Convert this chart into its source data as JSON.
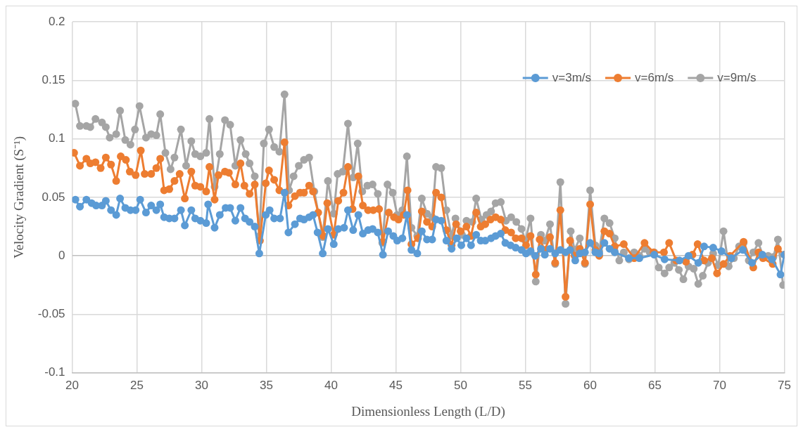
{
  "chart_data": {
    "type": "line",
    "xlabel": "Dimensionless Length (L/D)",
    "ylabel": "Velocity Gradient (S⁻¹)",
    "xlim": [
      20,
      75
    ],
    "xticks": [
      20,
      25,
      30,
      35,
      40,
      45,
      50,
      55,
      60,
      65,
      70,
      75
    ],
    "ylim": [
      -0.1,
      0.2
    ],
    "yticks": [
      -0.1,
      -0.05,
      0,
      0.05,
      0.1,
      0.15,
      0.2
    ],
    "grid": true,
    "legend": "top right",
    "marker": "circle",
    "line_style": "solid",
    "series": [
      {
        "name": "v=3m/s",
        "color": "#5b9bd5",
        "x": [
          20.25,
          20.6,
          21.1,
          21.5,
          21.85,
          22.3,
          22.6,
          23.0,
          23.4,
          23.7,
          24.1,
          24.5,
          24.9,
          25.25,
          25.7,
          26.1,
          26.5,
          26.8,
          27.1,
          27.5,
          27.9,
          28.4,
          28.7,
          29.2,
          29.5,
          29.9,
          30.35,
          30.5,
          31.0,
          31.4,
          31.85,
          32.2,
          32.6,
          33.0,
          33.35,
          33.7,
          34.1,
          34.45,
          34.95,
          35.25,
          35.6,
          36.05,
          36.4,
          36.7,
          37.2,
          37.6,
          37.9,
          38.3,
          38.6,
          38.95,
          39.35,
          39.75,
          40.2,
          40.55,
          41.0,
          41.3,
          41.7,
          42.1,
          42.45,
          42.85,
          43.2,
          43.6,
          44.0,
          44.4,
          44.8,
          45.1,
          45.5,
          45.85,
          46.2,
          46.65,
          47.0,
          47.4,
          47.8,
          48.1,
          48.5,
          48.9,
          49.3,
          49.7,
          50.05,
          50.45,
          50.8,
          51.2,
          51.55,
          51.9,
          52.35,
          52.7,
          53.1,
          53.45,
          53.85,
          54.25,
          54.7,
          55.05,
          55.4,
          55.75,
          56.2,
          56.5,
          56.9,
          57.3,
          57.7,
          58.1,
          58.45,
          58.85,
          59.2,
          59.6,
          60.0,
          60.4,
          60.7,
          61.1,
          61.5,
          61.9,
          63.0,
          63.8,
          64.95,
          65.75,
          66.9,
          67.6,
          68.35,
          68.8,
          69.5,
          70.15,
          70.9,
          71.8,
          72.5,
          73.3,
          74.05,
          74.7,
          75.0
        ],
        "values": [
          0.048,
          0.042,
          0.048,
          0.045,
          0.043,
          0.043,
          0.047,
          0.039,
          0.035,
          0.049,
          0.041,
          0.039,
          0.039,
          0.048,
          0.037,
          0.043,
          0.039,
          0.044,
          0.033,
          0.032,
          0.032,
          0.039,
          0.026,
          0.039,
          0.032,
          0.03,
          0.028,
          0.044,
          0.024,
          0.035,
          0.041,
          0.041,
          0.03,
          0.041,
          0.032,
          0.029,
          0.025,
          0.002,
          0.035,
          0.039,
          0.032,
          0.032,
          0.054,
          0.02,
          0.027,
          0.032,
          0.031,
          0.033,
          0.035,
          0.02,
          0.002,
          0.023,
          0.01,
          0.023,
          0.024,
          0.039,
          0.022,
          0.035,
          0.019,
          0.022,
          0.023,
          0.02,
          0.001,
          0.021,
          0.017,
          0.013,
          0.015,
          0.035,
          0.005,
          0.002,
          0.021,
          0.014,
          0.014,
          0.031,
          0.03,
          0.013,
          0.006,
          0.015,
          0.009,
          0.015,
          0.009,
          0.018,
          0.013,
          0.013,
          0.015,
          0.017,
          0.019,
          0.011,
          0.009,
          0.007,
          0.005,
          0.002,
          0.004,
          0.0,
          0.006,
          0.001,
          0.006,
          0.002,
          0.005,
          0.003,
          0.005,
          -0.004,
          0.002,
          0.003,
          0.011,
          0.003,
          0.002,
          0.011,
          0.006,
          0.003,
          -0.002,
          -0.002,
          0.001,
          -0.003,
          -0.004,
          0.0,
          -0.006,
          0.008,
          0.007,
          0.004,
          -0.002,
          0.005,
          -0.006,
          0.001,
          -0.003,
          -0.016,
          0.001
        ]
      },
      {
        "name": "v=6m/s",
        "color": "#ed7d31",
        "x": [
          20.15,
          20.6,
          21.1,
          21.4,
          21.8,
          22.2,
          22.6,
          23.0,
          23.4,
          23.75,
          24.15,
          24.45,
          24.9,
          25.3,
          25.6,
          26.1,
          26.5,
          26.8,
          27.1,
          27.5,
          27.9,
          28.3,
          28.7,
          29.2,
          29.5,
          29.9,
          30.35,
          30.6,
          31.0,
          31.3,
          31.8,
          32.1,
          32.6,
          33.0,
          33.3,
          33.7,
          34.1,
          34.5,
          34.95,
          35.2,
          35.6,
          36.0,
          36.4,
          36.7,
          37.2,
          37.6,
          37.9,
          38.3,
          38.6,
          39.0,
          39.4,
          39.7,
          40.2,
          40.55,
          40.95,
          41.3,
          41.65,
          42.1,
          42.45,
          42.85,
          43.25,
          43.7,
          44.0,
          44.45,
          44.85,
          45.2,
          45.6,
          45.9,
          46.2,
          46.7,
          47.0,
          47.4,
          47.8,
          48.1,
          48.5,
          48.9,
          49.3,
          49.65,
          50.0,
          50.45,
          50.8,
          51.2,
          51.55,
          51.9,
          52.3,
          52.7,
          53.1,
          53.45,
          53.9,
          54.25,
          54.7,
          55.05,
          55.4,
          55.8,
          56.1,
          56.5,
          56.9,
          57.3,
          57.7,
          58.1,
          58.45,
          58.8,
          59.2,
          59.6,
          60.0,
          60.4,
          60.7,
          61.1,
          61.5,
          61.9,
          62.6,
          63.4,
          64.2,
          64.9,
          65.7,
          66.1,
          66.65,
          67.4,
          67.9,
          68.3,
          68.8,
          69.4,
          69.8,
          70.3,
          70.8,
          71.85,
          72.6,
          73.0,
          73.35,
          74.1,
          74.5,
          75.0
        ],
        "values": [
          0.088,
          0.077,
          0.083,
          0.079,
          0.08,
          0.075,
          0.084,
          0.078,
          0.064,
          0.085,
          0.082,
          0.072,
          0.069,
          0.09,
          0.07,
          0.07,
          0.075,
          0.083,
          0.056,
          0.057,
          0.064,
          0.07,
          0.049,
          0.072,
          0.06,
          0.059,
          0.055,
          0.076,
          0.048,
          0.069,
          0.072,
          0.071,
          0.061,
          0.079,
          0.06,
          0.053,
          0.061,
          0.013,
          0.062,
          0.073,
          0.065,
          0.056,
          0.097,
          0.043,
          0.051,
          0.054,
          0.054,
          0.06,
          0.055,
          0.037,
          0.017,
          0.045,
          0.018,
          0.047,
          0.054,
          0.076,
          0.04,
          0.068,
          0.043,
          0.039,
          0.039,
          0.04,
          0.012,
          0.037,
          0.033,
          0.031,
          0.035,
          0.056,
          0.01,
          0.015,
          0.038,
          0.029,
          0.025,
          0.054,
          0.05,
          0.022,
          0.009,
          0.027,
          0.021,
          0.025,
          0.017,
          0.037,
          0.025,
          0.027,
          0.031,
          0.033,
          0.031,
          0.022,
          0.02,
          0.015,
          0.015,
          0.009,
          0.017,
          -0.016,
          0.014,
          0.005,
          0.016,
          -0.006,
          0.039,
          -0.035,
          0.013,
          0.0,
          0.006,
          -0.006,
          0.044,
          0.005,
          0.0,
          0.021,
          0.019,
          0.008,
          0.01,
          -0.002,
          0.011,
          0.003,
          0.003,
          0.011,
          -0.004,
          -0.005,
          0.001,
          0.01,
          -0.004,
          -0.002,
          -0.015,
          -0.007,
          0.0,
          0.012,
          -0.01,
          0.003,
          -0.002,
          -0.007,
          0.006,
          0.001
        ]
      },
      {
        "name": "v=9m/s",
        "color": "#a5a5a5",
        "x": [
          20.24,
          20.6,
          21.1,
          21.4,
          21.8,
          22.3,
          22.6,
          22.9,
          23.4,
          23.7,
          24.1,
          24.5,
          24.85,
          25.2,
          25.7,
          26.1,
          26.5,
          26.8,
          27.2,
          27.6,
          27.9,
          28.4,
          28.8,
          29.2,
          29.5,
          29.9,
          30.35,
          30.6,
          31.0,
          31.4,
          31.8,
          32.2,
          32.6,
          33.0,
          33.4,
          33.7,
          34.1,
          34.45,
          34.8,
          35.2,
          35.6,
          36.0,
          36.4,
          36.75,
          37.1,
          37.5,
          37.9,
          38.3,
          38.7,
          39.35,
          39.75,
          40.2,
          40.5,
          40.9,
          41.3,
          41.7,
          42.05,
          42.4,
          42.8,
          43.2,
          43.6,
          43.95,
          44.35,
          44.75,
          45.1,
          45.5,
          45.85,
          46.2,
          46.65,
          47.0,
          47.4,
          47.8,
          48.1,
          48.5,
          48.9,
          49.3,
          49.6,
          50.1,
          50.45,
          50.9,
          51.2,
          51.6,
          52.0,
          52.35,
          52.7,
          53.1,
          53.5,
          53.9,
          54.3,
          54.7,
          55.0,
          55.4,
          55.8,
          56.2,
          56.5,
          56.9,
          57.3,
          57.7,
          58.1,
          58.5,
          58.8,
          59.2,
          59.6,
          60.0,
          60.4,
          60.7,
          61.1,
          61.5,
          61.9,
          62.25,
          62.6,
          63.0,
          63.4,
          63.8,
          64.2,
          64.6,
          64.95,
          65.3,
          65.75,
          66.1,
          66.5,
          66.85,
          67.2,
          67.6,
          68.0,
          68.35,
          68.7,
          69.1,
          69.5,
          69.9,
          70.3,
          70.7,
          71.1,
          71.5,
          71.85,
          72.25,
          72.6,
          73.0,
          73.35,
          73.75,
          74.15,
          74.5,
          74.9
        ],
        "values": [
          0.13,
          0.111,
          0.111,
          0.11,
          0.117,
          0.114,
          0.11,
          0.101,
          0.104,
          0.124,
          0.099,
          0.095,
          0.108,
          0.128,
          0.101,
          0.104,
          0.103,
          0.121,
          0.088,
          0.074,
          0.084,
          0.108,
          0.077,
          0.098,
          0.087,
          0.085,
          0.088,
          0.117,
          0.059,
          0.087,
          0.116,
          0.112,
          0.077,
          0.099,
          0.087,
          0.079,
          0.068,
          0.017,
          0.096,
          0.108,
          0.093,
          0.089,
          0.138,
          0.056,
          0.068,
          0.077,
          0.082,
          0.084,
          0.055,
          0.016,
          0.064,
          0.036,
          0.07,
          0.072,
          0.113,
          0.067,
          0.096,
          0.055,
          0.06,
          0.061,
          0.053,
          0.011,
          0.061,
          0.054,
          0.035,
          0.039,
          0.085,
          0.024,
          0.017,
          0.049,
          0.036,
          0.033,
          0.076,
          0.075,
          0.039,
          0.017,
          0.032,
          0.018,
          0.03,
          0.029,
          0.049,
          0.031,
          0.035,
          0.038,
          0.045,
          0.046,
          0.03,
          0.033,
          0.029,
          0.023,
          0.013,
          0.032,
          -0.022,
          0.018,
          0.013,
          0.027,
          -0.007,
          0.063,
          -0.041,
          0.021,
          0.005,
          0.015,
          -0.007,
          0.056,
          0.009,
          0.004,
          0.032,
          0.028,
          0.015,
          -0.004,
          0.003,
          -0.003,
          0.003,
          0.0,
          0.006,
          0.003,
          0.003,
          -0.01,
          -0.015,
          -0.01,
          -0.006,
          -0.012,
          -0.02,
          -0.009,
          -0.011,
          -0.024,
          -0.017,
          -0.006,
          0.002,
          -0.008,
          0.021,
          -0.009,
          -0.002,
          0.008,
          0.011,
          -0.004,
          0.003,
          0.011,
          0.0,
          0.0,
          -0.001,
          0.014,
          -0.025
        ]
      }
    ]
  }
}
